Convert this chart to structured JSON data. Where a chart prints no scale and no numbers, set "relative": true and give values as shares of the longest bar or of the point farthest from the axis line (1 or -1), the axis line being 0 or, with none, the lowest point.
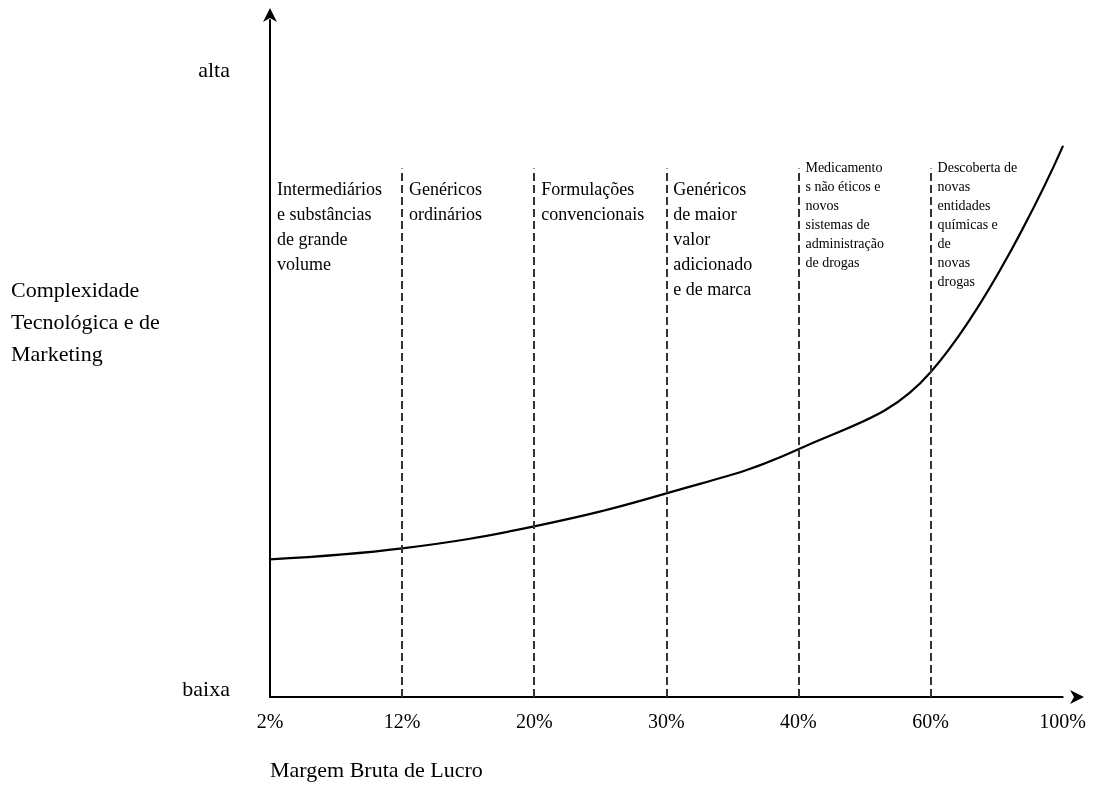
{
  "chart_data": {
    "type": "line",
    "relative": true,
    "xlabel": "Margem Bruta de Lucro",
    "ylabel": "Complexidade\nTecnológica e de\nMarketing",
    "categories": [
      "2%",
      "12%",
      "20%",
      "30%",
      "40%",
      "60%",
      "100%"
    ],
    "series": [
      {
        "color": "#000000",
        "values": [
          0.25,
          0.27,
          0.31,
          0.37,
          0.45,
          0.59,
          1
        ]
      }
    ],
    "marker": "none",
    "line_style": "solid",
    "grid": false,
    "ref_lines": [
      {
        "axis": "x",
        "value": "12%",
        "line_style": "dashed",
        "color": "#333333"
      },
      {
        "axis": "x",
        "value": "20%",
        "line_style": "dashed",
        "color": "#333333"
      },
      {
        "axis": "x",
        "value": "30%",
        "line_style": "dashed",
        "color": "#333333"
      },
      {
        "axis": "x",
        "value": "40%",
        "line_style": "dashed",
        "color": "#333333"
      },
      {
        "axis": "x",
        "value": "60%",
        "line_style": "dashed",
        "color": "#333333"
      }
    ],
    "annotations": [
      "alta",
      "baixa",
      "Intermediários\ne substâncias\nde grande\nvolume",
      "Genéricos\nordinários",
      "Formulações\nconvencionais",
      "Genéricos\nde maior\nvalor\nadicionado\ne de marca",
      "Medicamento\ns não éticos e\nnovos\nsistemas de\nadministração\nde drogas",
      "Descoberta de\nnovas\nentidades\nquímicas e\nde\nnovas\ndrogas"
    ]
  }
}
